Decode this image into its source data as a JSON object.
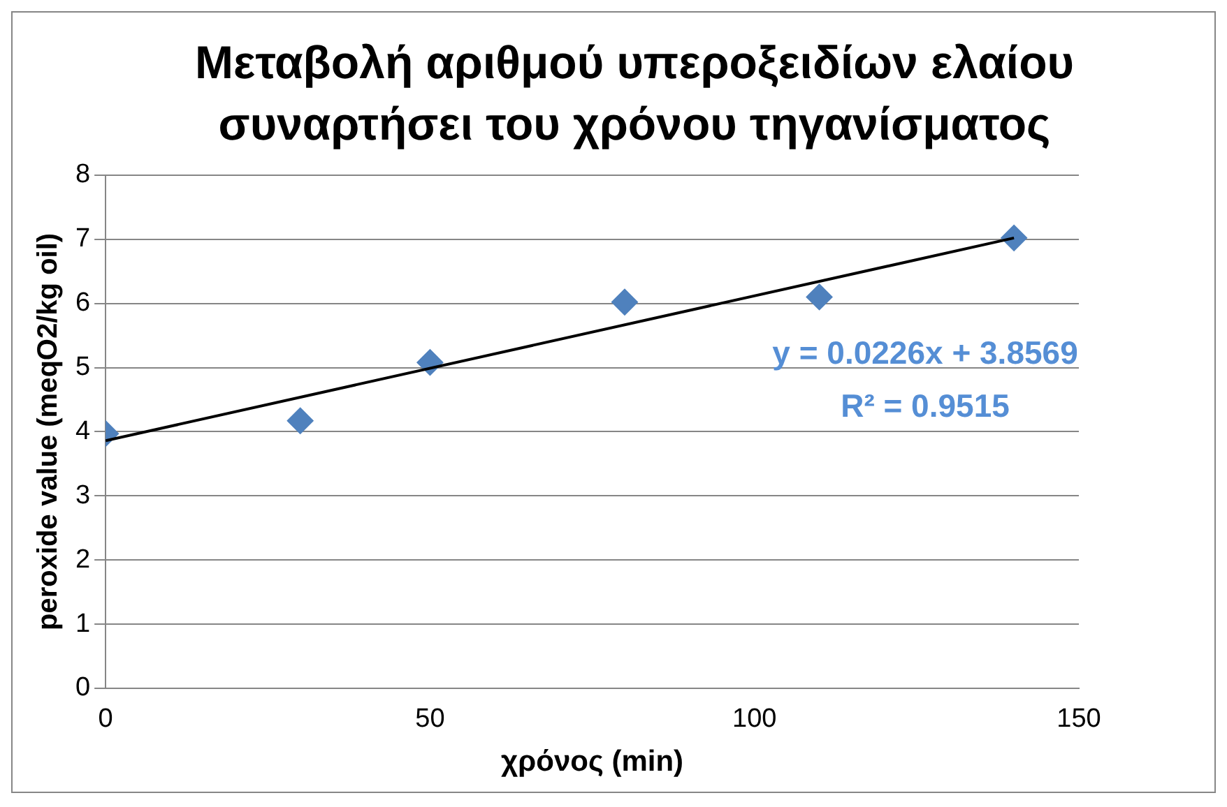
{
  "chart_data": {
    "type": "scatter",
    "title": "Μεταβολή αριθμού υπεροξειδίων ελαίου συναρτήσει του χρόνου τηγανίσματος",
    "xlabel": "χρόνος (min)",
    "ylabel": "peroxide value (meqO2/kg oil)",
    "x": [
      0,
      30,
      50,
      80,
      110,
      140
    ],
    "series": [
      {
        "type": "scatter",
        "color": "#4f81bd",
        "marker": "diamond",
        "values": [
          3.97,
          4.17,
          5.08,
          6.02,
          6.1,
          7.02
        ]
      },
      {
        "type": "line",
        "color": "#000000",
        "marker": "none",
        "x": [
          0,
          140
        ],
        "values": [
          3.86,
          7.02
        ]
      }
    ],
    "xlim": [
      0,
      150
    ],
    "xticks": [
      0,
      50,
      100,
      150
    ],
    "ylim": [
      0,
      8
    ],
    "yticks": [
      0,
      1,
      2,
      3,
      4,
      5,
      6,
      7,
      8
    ],
    "grid": "y",
    "legend": false,
    "annotations": [
      "y = 0.0226x + 3.8569",
      "R² = 0.9515"
    ]
  }
}
